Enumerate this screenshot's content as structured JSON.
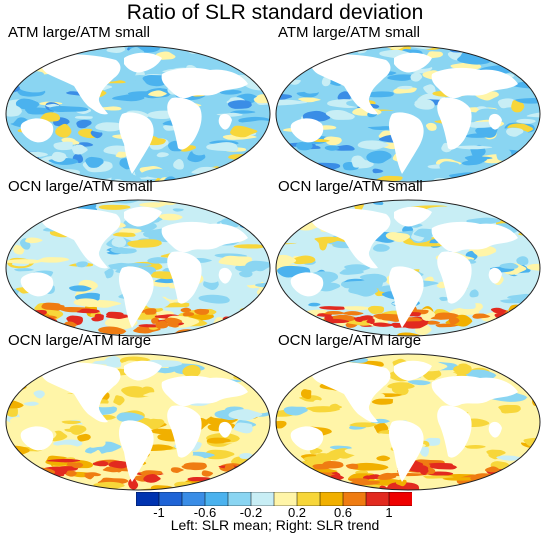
{
  "title": "Ratio of SLR standard deviation",
  "panels": [
    {
      "label": "ATM large/ATM small",
      "scheme": "atm"
    },
    {
      "label": "ATM large/ATM small",
      "scheme": "atm"
    },
    {
      "label": "OCN large/ATM small",
      "scheme": "ocn_small"
    },
    {
      "label": "OCN large/ATM small",
      "scheme": "ocn_small"
    },
    {
      "label": "OCN large/ATM large",
      "scheme": "ocn_large"
    },
    {
      "label": "OCN large/ATM large",
      "scheme": "ocn_large"
    }
  ],
  "colorbar": {
    "colors": [
      "#0033b0",
      "#1f64d6",
      "#3a8de6",
      "#4bb2ee",
      "#8ad5f2",
      "#c8eef5",
      "#fff5a8",
      "#f7d63a",
      "#f1b000",
      "#ef7c12",
      "#e22a1f",
      "#ee0000"
    ],
    "tick_labels": [
      "-1",
      "-0.6",
      "-0.2",
      "0.2",
      "0.6",
      "1"
    ]
  },
  "caption": "Left: SLR mean; Right: SLR trend"
}
